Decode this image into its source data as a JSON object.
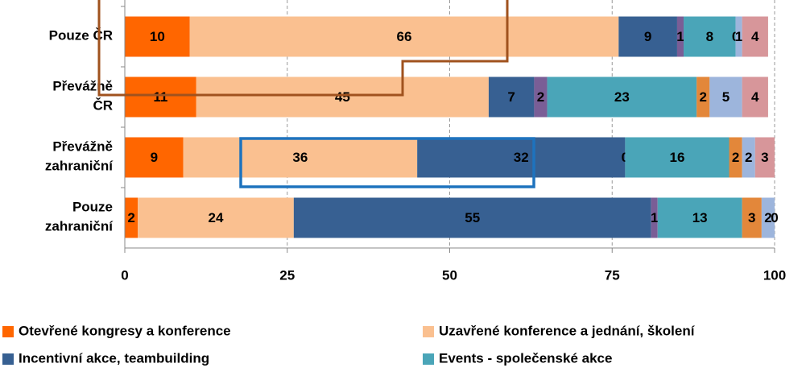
{
  "chart_data": {
    "type": "stacked-bar-horizontal",
    "categories": [
      "Pouze ČR",
      "Převážně ČR",
      "Převážně zahraniční",
      "Pouze zahraniční"
    ],
    "series": [
      {
        "name": "Otevřené kongresy a konference",
        "color": "#ff6600",
        "values": [
          10,
          11,
          9,
          2
        ]
      },
      {
        "name": "Uzavřené konference a jednání, školení",
        "color": "#fac090",
        "values": [
          66,
          45,
          36,
          24
        ]
      },
      {
        "name": "Incentivní akce, teambuilding",
        "color": "#376092",
        "values": [
          9,
          7,
          32,
          55
        ]
      },
      {
        "color": "#7a5e96",
        "values": [
          1,
          2,
          0,
          1
        ]
      },
      {
        "name": "Events - společenské akce",
        "color": "#4aa5b8",
        "values": [
          8,
          23,
          16,
          13
        ]
      },
      {
        "color": "#e3873a",
        "values": [
          0,
          2,
          2,
          3
        ]
      },
      {
        "color": "#9db5dc",
        "values": [
          1,
          5,
          2,
          2
        ]
      },
      {
        "color": "#d7969a",
        "values": [
          4,
          4,
          3,
          0
        ]
      }
    ],
    "xlim": [
      0,
      100
    ],
    "xticks": [
      0,
      25,
      50,
      75,
      100
    ],
    "grid": true
  }
}
